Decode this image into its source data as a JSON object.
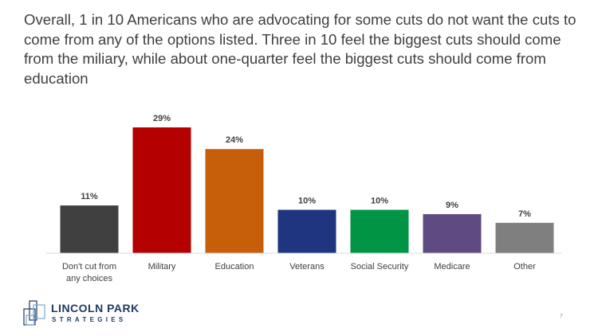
{
  "headline": "Overall, 1 in 10 Americans who are advocating for some cuts do not want the cuts to come from any of the options listed. Three in 10 feel the biggest cuts should come from the miliary, while about one-quarter feel the biggest cuts should come from education",
  "chart_data": {
    "type": "bar",
    "categories": [
      [
        "Don't cut from",
        "any choices"
      ],
      [
        "Military"
      ],
      [
        "Education"
      ],
      [
        "Veterans"
      ],
      [
        "Social Security"
      ],
      [
        "Medicare"
      ],
      [
        "Other"
      ]
    ],
    "values": [
      11,
      29,
      24,
      10,
      10,
      9,
      7
    ],
    "value_labels": [
      "11%",
      "29%",
      "24%",
      "10%",
      "10%",
      "9%",
      "7%"
    ],
    "colors": [
      "#404040",
      "#b50000",
      "#c65e0a",
      "#1f3580",
      "#009444",
      "#604a82",
      "#7f7f7f"
    ],
    "ylim": [
      0,
      29
    ],
    "grid": false,
    "legend": "none"
  },
  "logo": {
    "name": "LINCOLN PARK",
    "tagline": "STRATEGIES",
    "color": "#1f3a5f"
  },
  "page_number": "7"
}
